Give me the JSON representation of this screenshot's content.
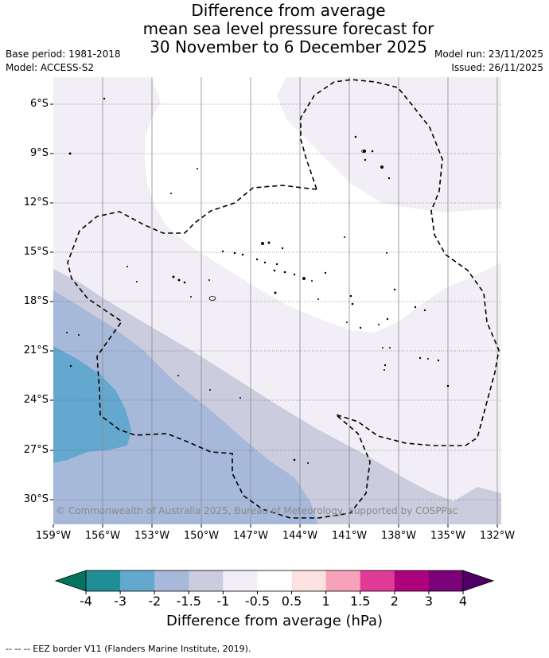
{
  "title": {
    "line1": "Difference from average",
    "line2": "mean sea level pressure forecast for",
    "line3": "30 November to 6 December 2025"
  },
  "meta": {
    "base_period": "Base period: 1981-2018",
    "model": "Model: ACCESS-S2",
    "model_run": "Model run: 23/11/2025",
    "issued": "Issued: 26/11/2025"
  },
  "map": {
    "lat_labels": [
      "6°S",
      "9°S",
      "12°S",
      "15°S",
      "18°S",
      "21°S",
      "24°S",
      "27°S",
      "30°S"
    ],
    "lon_labels": [
      "159°W",
      "156°W",
      "153°W",
      "150°W",
      "147°W",
      "144°W",
      "141°W",
      "138°W",
      "135°W",
      "132°W"
    ],
    "credit": "© Commonwealth of Australia 2025, Bureau of Meteorology, supported by COSPPac"
  },
  "colorbar": {
    "ticks": [
      "-4",
      "-3",
      "-2",
      "-1.5",
      "-1",
      "-0.5",
      "0.5",
      "1",
      "1.5",
      "2",
      "3",
      "4"
    ],
    "colors": [
      "#1f8e96",
      "#64a8cf",
      "#a7b9da",
      "#ccccdf",
      "#f2eef6",
      "#ffffff",
      "#fde0e0",
      "#f7a1bb",
      "#e23b97",
      "#ae017e",
      "#7a0177"
    ],
    "under_color": "#02735c",
    "over_color": "#4d0066",
    "label": "Difference from average (hPa)"
  },
  "footer": "--  --  -- EEZ border V11 (Flanders Marine Institute, 2019)."
}
